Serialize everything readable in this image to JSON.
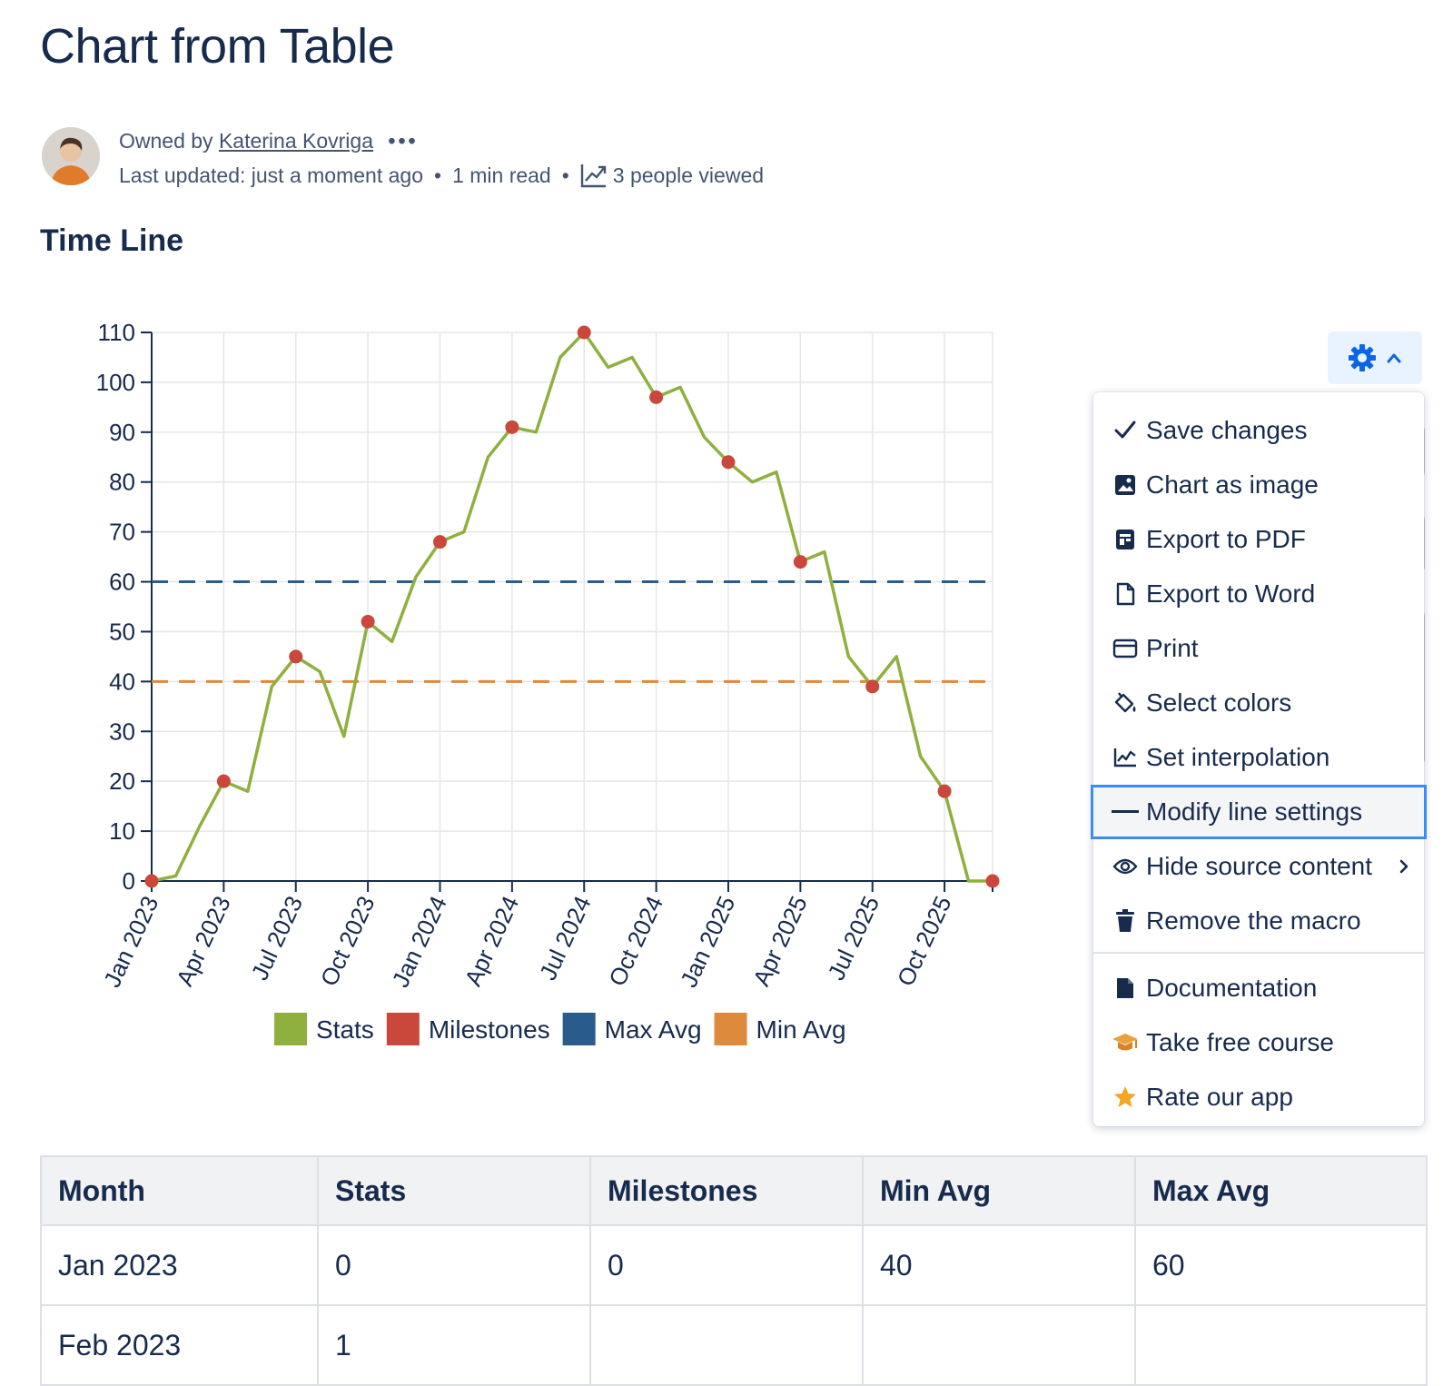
{
  "page": {
    "title": "Chart from Table",
    "owned_by_label": "Owned by",
    "owner_name": "Katerina Kovriga",
    "more_label": "•••",
    "last_updated": "Last updated: just a moment ago",
    "read_time": "1 min read",
    "views": "3 people viewed",
    "section_title": "Time Line"
  },
  "colors": {
    "stats": "#8fb03e",
    "milestones": "#c9473b",
    "max_avg": "#295b8c",
    "min_avg": "#dd8a3c",
    "accent": "#0c66e4"
  },
  "chart_data": {
    "type": "line",
    "ylim": [
      0,
      110
    ],
    "yticks": [
      "0",
      "10",
      "20",
      "30",
      "40",
      "50",
      "60",
      "70",
      "80",
      "90",
      "100",
      "110"
    ],
    "x_labels": [
      "Jan 2023",
      "Apr 2023",
      "Jul 2023",
      "Oct 2023",
      "Jan 2024",
      "Apr 2024",
      "Jul 2024",
      "Oct 2024",
      "Jan 2025",
      "Apr 2025",
      "Jul 2025",
      "Oct 2025"
    ],
    "series": [
      {
        "name": "Stats",
        "values": [
          0,
          1,
          11,
          20,
          18,
          39,
          45,
          42,
          29,
          52,
          48,
          61,
          68,
          70,
          85,
          91,
          90,
          105,
          110,
          103,
          105,
          97,
          99,
          89,
          84,
          80,
          82,
          64,
          66,
          45,
          39,
          45,
          25,
          18,
          0,
          0
        ]
      },
      {
        "name": "Milestones",
        "points": [
          [
            0,
            0
          ],
          [
            3,
            20
          ],
          [
            6,
            45
          ],
          [
            9,
            52
          ],
          [
            12,
            68
          ],
          [
            15,
            91
          ],
          [
            18,
            110
          ],
          [
            21,
            97
          ],
          [
            24,
            84
          ],
          [
            27,
            64
          ],
          [
            30,
            39
          ],
          [
            33,
            18
          ],
          [
            35,
            0
          ]
        ]
      },
      {
        "name": "Max Avg",
        "value": 60
      },
      {
        "name": "Min Avg",
        "value": 40
      }
    ],
    "legend": [
      "Stats",
      "Milestones",
      "Max Avg",
      "Min Avg"
    ],
    "legend_position": "bottom",
    "grid": true
  },
  "menu": {
    "items": [
      {
        "id": "save",
        "label": "Save changes",
        "icon": "check-icon"
      },
      {
        "id": "image",
        "label": "Chart as image",
        "icon": "image-icon"
      },
      {
        "id": "pdf",
        "label": "Export to PDF",
        "icon": "pdf-icon"
      },
      {
        "id": "word",
        "label": "Export to Word",
        "icon": "document-icon"
      },
      {
        "id": "print",
        "label": "Print",
        "icon": "print-icon"
      },
      {
        "id": "colors",
        "label": "Select colors",
        "icon": "paint-bucket-icon"
      },
      {
        "id": "interp",
        "label": "Set interpolation",
        "icon": "line-chart-icon"
      },
      {
        "id": "line",
        "label": "Modify line settings",
        "icon": "line-icon",
        "selected": true
      },
      {
        "id": "hide",
        "label": "Hide source content",
        "icon": "eye-icon",
        "submenu": true
      },
      {
        "id": "remove",
        "label": "Remove the macro",
        "icon": "trash-icon"
      },
      {
        "id": "docs",
        "label": "Documentation",
        "icon": "page-icon"
      },
      {
        "id": "course",
        "label": "Take free course",
        "icon": "graduation-cap-icon"
      },
      {
        "id": "rate",
        "label": "Rate our app",
        "icon": "star-icon"
      }
    ]
  },
  "table": {
    "headers": [
      "Month",
      "Stats",
      "Milestones",
      "Min Avg",
      "Max Avg"
    ],
    "rows": [
      [
        "Jan 2023",
        "0",
        "0",
        "40",
        "60"
      ],
      [
        "Feb 2023",
        "1",
        "",
        "",
        ""
      ]
    ]
  }
}
